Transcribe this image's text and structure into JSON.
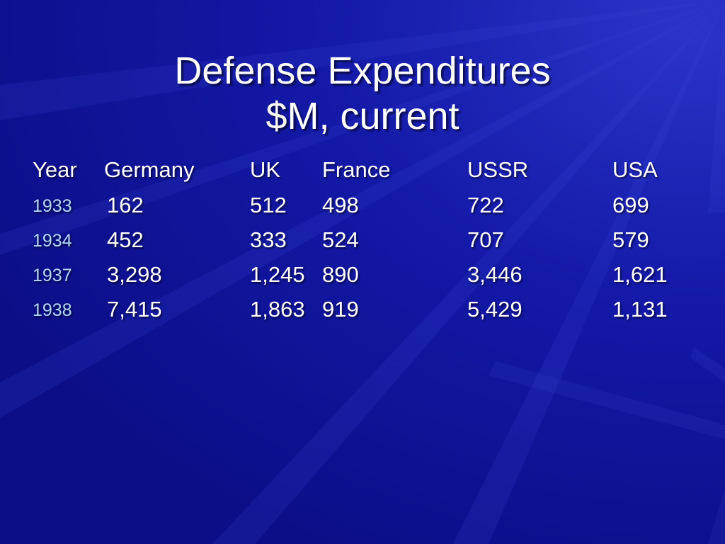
{
  "slide": {
    "title_line1": "Defense Expenditures",
    "title_line2": "$M, current",
    "colors": {
      "background": "#0f1393",
      "text": "#ffffff",
      "year_text": "#b5d6f5"
    }
  },
  "table": {
    "headers": [
      "Year",
      "Germany",
      "UK",
      "France",
      "USSR",
      "USA"
    ],
    "rows": [
      {
        "year": "1933",
        "germany": "162",
        "uk": "512",
        "france": "498",
        "ussr": "722",
        "usa": "699"
      },
      {
        "year": "1934",
        "germany": "452",
        "uk": "333",
        "france": "524",
        "ussr": "707",
        "usa": "579"
      },
      {
        "year": "1937",
        "germany": "3,298",
        "uk": "1,245",
        "france": "890",
        "ussr": "3,446",
        "usa": "1,621"
      },
      {
        "year": "1938",
        "germany": "7,415",
        "uk": "1,863",
        "france": "919",
        "ussr": "5,429",
        "usa": "1,131"
      }
    ]
  }
}
